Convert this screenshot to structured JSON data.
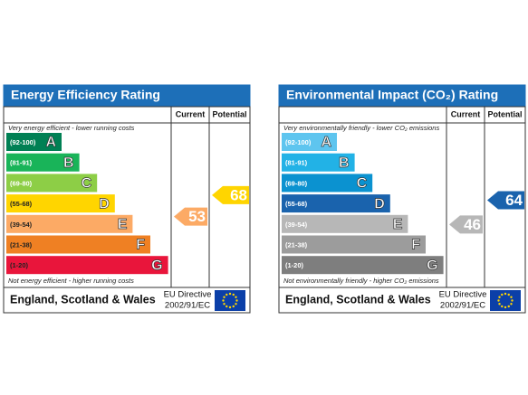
{
  "panels": [
    {
      "title": "Energy Efficiency Rating",
      "headers": [
        "Current",
        "Potential"
      ],
      "top_note": "Very energy efficient - lower running costs",
      "bottom_note": "Not energy efficient - higher running costs",
      "bands": [
        {
          "range": "(92-100)",
          "letter": "A",
          "color": "#008054"
        },
        {
          "range": "(81-91)",
          "letter": "B",
          "color": "#19b459"
        },
        {
          "range": "(69-80)",
          "letter": "C",
          "color": "#8dce46"
        },
        {
          "range": "(55-68)",
          "letter": "D",
          "color": "#ffd500"
        },
        {
          "range": "(39-54)",
          "letter": "E",
          "color": "#fcaa65"
        },
        {
          "range": "(21-38)",
          "letter": "F",
          "color": "#ef8023"
        },
        {
          "range": "(1-20)",
          "letter": "G",
          "color": "#e9153b"
        }
      ],
      "current": 53,
      "potential": 68,
      "footer": "England, Scotland & Wales",
      "directive": [
        "EU Directive",
        "2002/91/EC"
      ]
    },
    {
      "title": "Environmental Impact (CO₂) Rating",
      "headers": [
        "Current",
        "Potential"
      ],
      "top_note": "Very environmentally friendly - lower CO₂ emissions",
      "bottom_note": "Not environmentally friendly - higher CO₂ emissions",
      "bands": [
        {
          "range": "(92-100)",
          "letter": "A",
          "color": "#5ec5ef"
        },
        {
          "range": "(81-91)",
          "letter": "B",
          "color": "#22b2e6"
        },
        {
          "range": "(69-80)",
          "letter": "C",
          "color": "#0b92d0"
        },
        {
          "range": "(55-68)",
          "letter": "D",
          "color": "#1a63ad"
        },
        {
          "range": "(39-54)",
          "letter": "E",
          "color": "#b7b7b7"
        },
        {
          "range": "(21-38)",
          "letter": "F",
          "color": "#9c9c9c"
        },
        {
          "range": "(1-20)",
          "letter": "G",
          "color": "#7e7e7e"
        }
      ],
      "current": 46,
      "potential": 64,
      "footer": "England, Scotland & Wales",
      "directive": [
        "EU Directive",
        "2002/91/EC"
      ]
    }
  ]
}
